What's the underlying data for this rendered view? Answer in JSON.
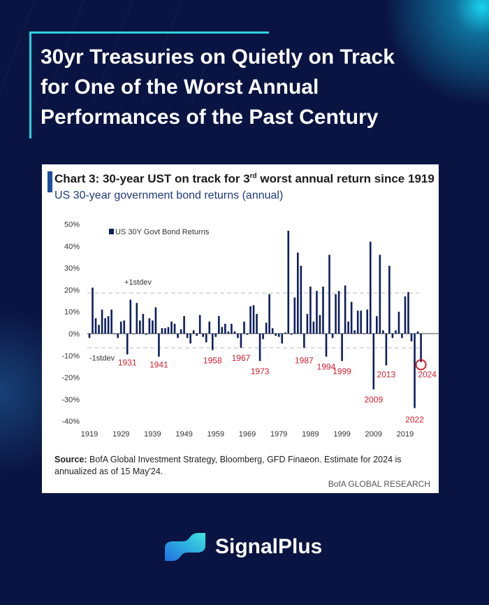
{
  "headline": [
    "30yr Treasuries on Quietly on Track",
    "for One of the Worst Annual",
    "Performances of the Past Century"
  ],
  "chart_panel": {
    "title_pre": "Chart 3: 30-year UST on track for 3",
    "title_sup": "rd",
    "title_post": " worst annual return since 1919",
    "subtitle": "US 30-year government bond returns (annual)",
    "source_label": "Source:",
    "source_text": " BofA Global Investment Strategy, Bloomberg, GFD Finaeon. Estimate for 2024 is annualized as of 15 May'24.",
    "brand": "BofA GLOBAL RESEARCH"
  },
  "chart_data": {
    "type": "bar",
    "title": "Chart 3: 30-year UST on track for 3rd worst annual return since 1919",
    "ylabel": "",
    "xlabel": "",
    "legend": {
      "label": "US 30Y Govt Bond Returns",
      "placement": "top-left"
    },
    "ylim": [
      -40,
      50
    ],
    "yticks": [
      50,
      40,
      30,
      20,
      10,
      0,
      -10,
      -20,
      -30,
      -40
    ],
    "ytick_labels": [
      "50%",
      "40%",
      "30%",
      "20%",
      "10%",
      "0%",
      "-10%",
      "-20%",
      "-30%",
      "-40%"
    ],
    "xticks": [
      1919,
      1929,
      1939,
      1949,
      1959,
      1969,
      1979,
      1989,
      1999,
      2009,
      2019
    ],
    "x_start": 1919,
    "values": [
      -2,
      21,
      7,
      4,
      11,
      7,
      8,
      11,
      0,
      -2,
      5.5,
      6,
      -9.5,
      15.5,
      0,
      14,
      6,
      9,
      -0.5,
      7,
      6,
      12,
      -10.5,
      2.5,
      2.5,
      3,
      5.5,
      4.5,
      -2,
      2,
      8,
      -2,
      -4.5,
      1.5,
      -1,
      8.5,
      -1.5,
      -4,
      5.5,
      -7.5,
      -1.5,
      8,
      3,
      4.5,
      1,
      4.5,
      1,
      -2,
      -6.5,
      5.5,
      -0.5,
      12.5,
      13,
      9,
      -12.5,
      -2.5,
      5,
      18,
      2.5,
      -1,
      -1.5,
      -4.5,
      0.5,
      47,
      -0.5,
      16.5,
      37,
      31,
      -6.5,
      9,
      21.5,
      5.5,
      19.5,
      8.5,
      21.5,
      -10.5,
      36,
      -2,
      18,
      19.5,
      -12.5,
      22,
      5.5,
      14.5,
      1.5,
      10.5,
      10.5,
      0,
      11,
      42,
      -25.5,
      8,
      36,
      1.5,
      -14.5,
      31,
      -2,
      1.5,
      10,
      -2,
      17,
      19,
      -3.5,
      -34,
      1,
      -13
    ],
    "reference_lines": [
      {
        "label": "+1stdev",
        "value": 18.5
      },
      {
        "label": "-1stdev",
        "value": -6.5
      }
    ],
    "annotations": [
      {
        "label": "1931",
        "year": 1931,
        "value": -14.5
      },
      {
        "label": "1941",
        "year": 1941,
        "value": -15.5
      },
      {
        "label": "1958",
        "year": 1958,
        "value": -13.5
      },
      {
        "label": "1967",
        "year": 1967,
        "value": -12.5
      },
      {
        "label": "1973",
        "year": 1973,
        "value": -18.5
      },
      {
        "label": "1987",
        "year": 1987,
        "value": -13.5
      },
      {
        "label": "1994",
        "year": 1994,
        "value": -16.5
      },
      {
        "label": "1999",
        "year": 1999,
        "value": -18.5
      },
      {
        "label": "2009",
        "year": 2009,
        "value": -31.5
      },
      {
        "label": "2013",
        "year": 2013,
        "value": -20
      },
      {
        "label": "2022",
        "year": 2022,
        "value": -40.5
      },
      {
        "label": "2024",
        "year": 2026,
        "value": -20
      }
    ],
    "highlight_year": 2024
  },
  "colors": {
    "bar": "#0d1f5c",
    "annotation": "#d22030",
    "accent": "#2ad4e0",
    "background": "#0a1442"
  },
  "logo": {
    "name": "SignalPlus"
  }
}
